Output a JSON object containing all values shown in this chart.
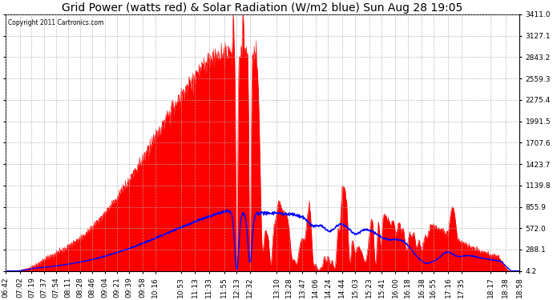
{
  "title": "Grid Power (watts red) & Solar Radiation (W/m2 blue) Sun Aug 28 19:05",
  "copyright_text": "Copyright 2011 Cartronics.com",
  "yticks": [
    4.2,
    288.1,
    572.0,
    855.9,
    1139.8,
    1423.7,
    1707.6,
    1991.5,
    2275.4,
    2559.3,
    2843.2,
    3127.1,
    3411.0
  ],
  "ymin": 4.2,
  "ymax": 3411.0,
  "background_color": "#ffffff",
  "grid_color": "#aaaaaa",
  "red_color": "#ff0000",
  "blue_color": "#0000ff",
  "title_fontsize": 10,
  "tick_fontsize": 6.5,
  "figsize": [
    6.9,
    3.75
  ],
  "dpi": 100,
  "xtick_labels": [
    "06:42",
    "07:02",
    "07:19",
    "07:37",
    "07:54",
    "08:11",
    "08:28",
    "08:46",
    "09:04",
    "09:21",
    "09:39",
    "09:58",
    "10:16",
    "10:53",
    "11:13",
    "11:33",
    "11:55",
    "12:13",
    "12:32",
    "13:10",
    "13:28",
    "13:47",
    "14:06",
    "14:24",
    "14:44",
    "15:03",
    "15:23",
    "15:41",
    "16:00",
    "16:18",
    "16:38",
    "16:55",
    "17:16",
    "17:35",
    "18:17",
    "18:38",
    "18:58"
  ]
}
